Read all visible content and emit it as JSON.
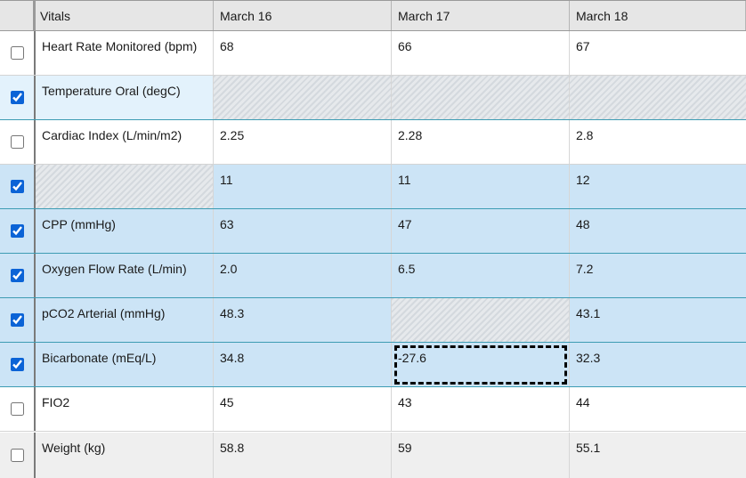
{
  "header": {
    "vitals_label": "Vitals",
    "dates": [
      "March 16",
      "March 17",
      "March 18"
    ]
  },
  "rows": [
    {
      "label": "Heart Rate Monitored (bpm)",
      "checked": false,
      "values": [
        "68",
        "66",
        "67"
      ]
    },
    {
      "label": "Temperature Oral (degC)",
      "checked": true,
      "values": [
        "",
        "",
        ""
      ]
    },
    {
      "label": "Cardiac Index (L/min/m2)",
      "checked": false,
      "values": [
        "2.25",
        "2.28",
        "2.8"
      ]
    },
    {
      "label": "",
      "checked": true,
      "values": [
        "11",
        "11",
        "12"
      ]
    },
    {
      "label": "CPP (mmHg)",
      "checked": true,
      "values": [
        "63",
        "47",
        "48"
      ]
    },
    {
      "label": "Oxygen Flow Rate (L/min)",
      "checked": true,
      "values": [
        "2.0",
        "6.5",
        "7.2"
      ]
    },
    {
      "label": "pCO2 Arterial (mmHg)",
      "checked": true,
      "values": [
        "48.3",
        "",
        "43.1"
      ]
    },
    {
      "label": "Bicarbonate (mEq/L)",
      "checked": true,
      "values": [
        "34.8",
        "-27.6",
        "32.3"
      ]
    },
    {
      "label": "FIO2",
      "checked": false,
      "values": [
        "45",
        "43",
        "44"
      ]
    },
    {
      "label": "Weight (kg)",
      "checked": false,
      "values": [
        "58.8",
        "59",
        "55.1"
      ]
    }
  ],
  "colors": {
    "selected_row": "#cce4f6",
    "selected_row_light": "#e3f2fc",
    "header_bg": "#e6e6e6",
    "checkbox_accent": "#0b63d6"
  }
}
